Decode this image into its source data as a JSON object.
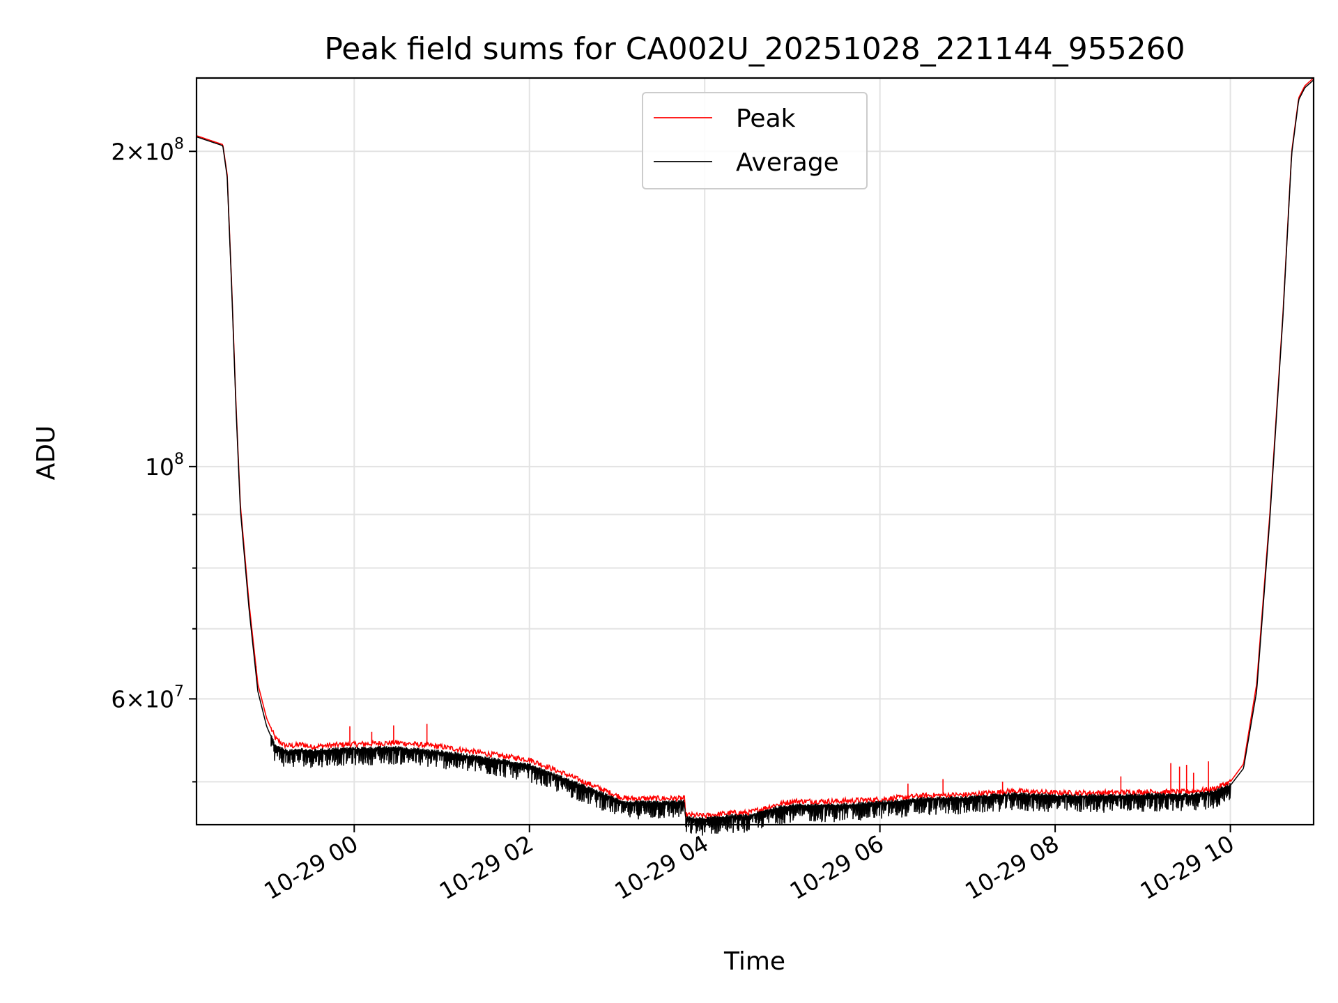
{
  "chart_data": {
    "type": "line",
    "title": "Peak field sums for CA002U_20251028_221144_955260",
    "xlabel": "Time",
    "ylabel": "ADU",
    "yscale": "log",
    "grid": true,
    "legend_position": "top-center",
    "xlim_hours": [
      -1.8,
      10.95
    ],
    "ylim": [
      45500000,
      235000000
    ],
    "x_ticks": [
      {
        "value": 0,
        "label": "10-29 00"
      },
      {
        "value": 2,
        "label": "10-29 02"
      },
      {
        "value": 4,
        "label": "10-29 04"
      },
      {
        "value": 6,
        "label": "10-29 06"
      },
      {
        "value": 8,
        "label": "10-29 08"
      },
      {
        "value": 10,
        "label": "10-29 10"
      }
    ],
    "y_ticks": [
      {
        "value": 60000000,
        "label_base": "6×10",
        "label_exp": "7"
      },
      {
        "value": 100000000,
        "label_base": "10",
        "label_exp": "8"
      },
      {
        "value": 200000000,
        "label_base": "2×10",
        "label_exp": "8"
      }
    ],
    "y_minor_ticks": [
      50000000,
      70000000,
      80000000,
      90000000
    ],
    "x_hours_note": "x values are hours relative to 10-29 00:00",
    "series": [
      {
        "name": "Peak",
        "color": "#ff0000",
        "x": [
          -1.8,
          -1.5,
          -1.5,
          -1.45,
          -1.4,
          -1.35,
          -1.3,
          -1.2,
          -1.1,
          -1.0,
          -0.9,
          -0.8,
          -0.7,
          -0.6,
          -0.5,
          -0.25,
          0.0,
          0.5,
          1.0,
          1.5,
          2.0,
          2.5,
          3.0,
          3.1,
          3.5,
          3.77,
          3.78,
          4.0,
          4.3,
          4.5,
          4.8,
          5.0,
          5.5,
          6.0,
          6.5,
          7.0,
          7.5,
          8.0,
          8.5,
          9.0,
          9.5,
          9.8,
          10.0,
          10.15,
          10.3,
          10.45,
          10.6,
          10.7,
          10.78,
          10.85,
          10.95
        ],
        "y": [
          207000000,
          203000000,
          203000000,
          190000000,
          150000000,
          115000000,
          92000000,
          74000000,
          62000000,
          57500000,
          55000000,
          54200000,
          54100000,
          54300000,
          54000000,
          54200000,
          54300000,
          54500000,
          54000000,
          53200000,
          52500000,
          50500000,
          48500000,
          48200000,
          48200000,
          48200000,
          46500000,
          46400000,
          46700000,
          46700000,
          47500000,
          47900000,
          47900000,
          48100000,
          48500000,
          48600000,
          49000000,
          48800000,
          48800000,
          48900000,
          48900000,
          49200000,
          50000000,
          52000000,
          62000000,
          90000000,
          140000000,
          200000000,
          225000000,
          231000000,
          235000000
        ],
        "spikes": [
          {
            "x": -1.12,
            "y": 64500000
          },
          {
            "x": -0.05,
            "y": 56500000
          },
          {
            "x": 0.2,
            "y": 55800000
          },
          {
            "x": 0.45,
            "y": 56600000
          },
          {
            "x": 0.83,
            "y": 56800000
          },
          {
            "x": 6.32,
            "y": 49800000
          },
          {
            "x": 6.72,
            "y": 50300000
          },
          {
            "x": 7.4,
            "y": 50000000
          },
          {
            "x": 8.75,
            "y": 50600000
          },
          {
            "x": 9.32,
            "y": 52100000
          },
          {
            "x": 9.42,
            "y": 51700000
          },
          {
            "x": 9.5,
            "y": 51900000
          },
          {
            "x": 9.58,
            "y": 51000000
          },
          {
            "x": 9.75,
            "y": 52300000
          }
        ]
      },
      {
        "name": "Average",
        "color": "#000000",
        "x": [
          -1.8,
          -1.5,
          -1.5,
          -1.45,
          -1.4,
          -1.35,
          -1.3,
          -1.2,
          -1.1,
          -1.0,
          -0.9,
          -0.8,
          -0.7,
          -0.6,
          -0.5,
          -0.25,
          0.0,
          0.5,
          1.0,
          1.5,
          2.0,
          2.5,
          3.0,
          3.1,
          3.5,
          3.77,
          3.78,
          4.0,
          4.3,
          4.5,
          4.8,
          5.0,
          5.5,
          6.0,
          6.5,
          7.0,
          7.5,
          8.0,
          8.5,
          9.0,
          9.5,
          9.8,
          10.0,
          10.15,
          10.3,
          10.45,
          10.6,
          10.7,
          10.78,
          10.85,
          10.95
        ],
        "y": [
          206500000,
          202500000,
          202500000,
          189000000,
          149000000,
          114000000,
          91000000,
          73000000,
          61000000,
          56500000,
          54000000,
          53500000,
          53400000,
          53600000,
          53400000,
          53600000,
          53700000,
          53800000,
          53300000,
          52600000,
          51800000,
          49900000,
          48000000,
          47700000,
          47700000,
          47800000,
          46100000,
          46000000,
          46300000,
          46300000,
          47100000,
          47400000,
          47400000,
          47700000,
          48100000,
          48200000,
          48600000,
          48400000,
          48400000,
          48500000,
          48500000,
          48800000,
          49600000,
          51500000,
          61000000,
          89000000,
          139000000,
          199000000,
          224000000,
          230000000,
          234000000
        ],
        "noise_band_low": 0.965,
        "noise_range_hours": [
          -0.95,
          10.0
        ]
      }
    ]
  }
}
